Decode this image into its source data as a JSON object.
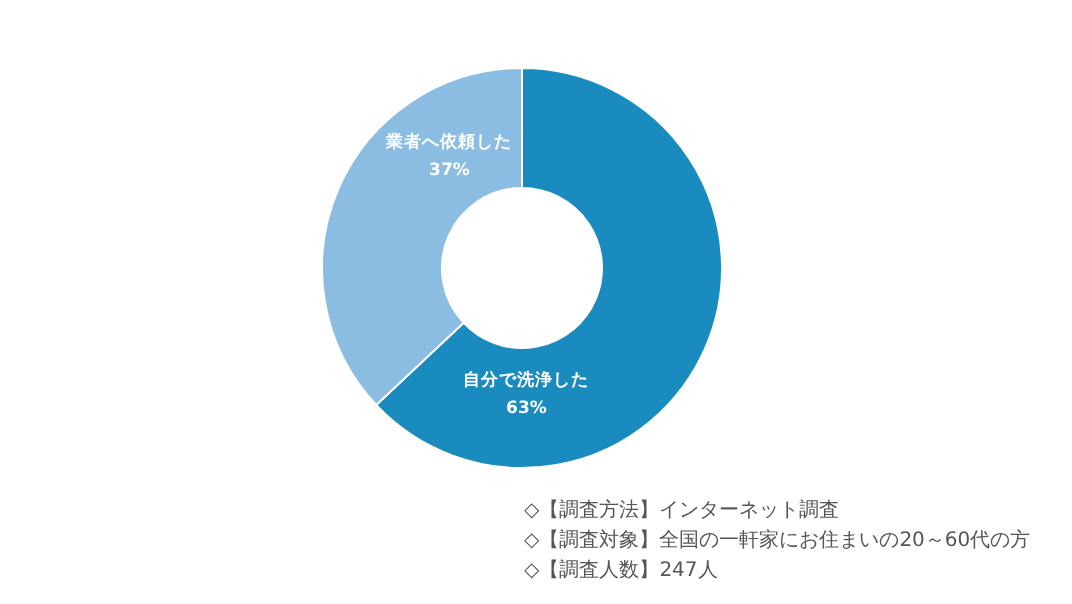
{
  "chart_data": {
    "type": "donut",
    "categories": [
      "自分で洗浄した",
      "業者へ依頼した"
    ],
    "values": [
      63,
      37
    ],
    "colors": [
      "#1a8bbf",
      "#8bbde2"
    ],
    "value_labels": [
      "63%",
      "37%"
    ],
    "annotations": [
      "◇【調査方法】インターネット調査",
      "◇【調査対象】全国の一軒家にお住まいの20～60代の方",
      "◇【調査人数】247人"
    ]
  }
}
